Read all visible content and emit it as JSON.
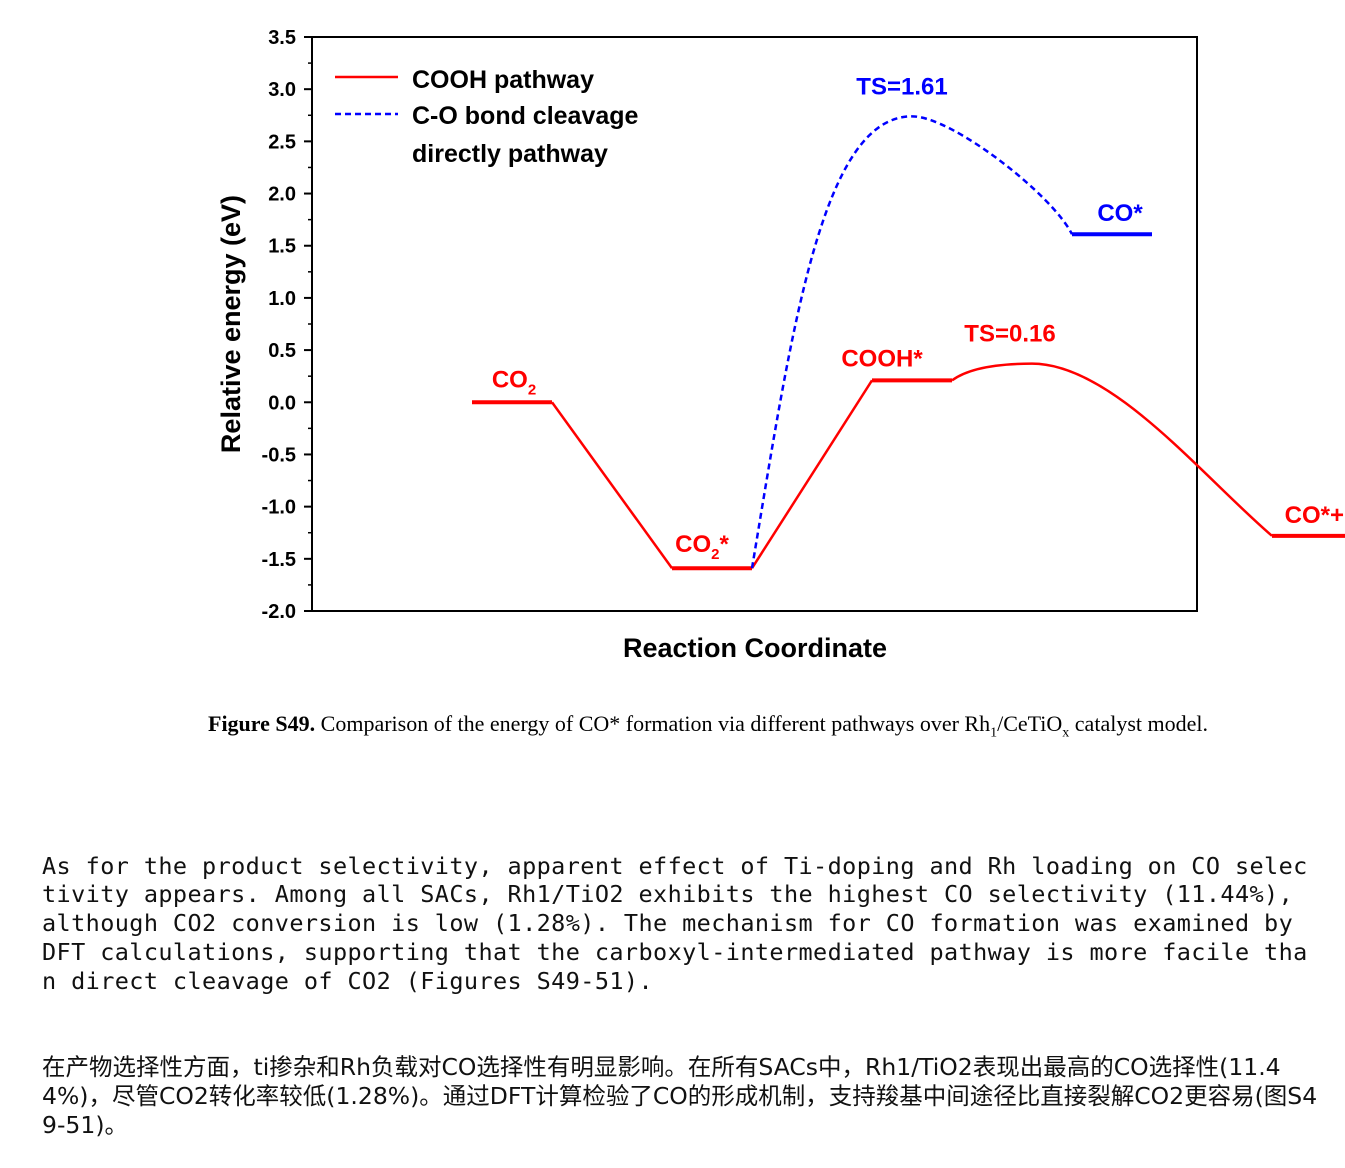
{
  "chart_data": {
    "type": "line",
    "xlabel": "Reaction Coordinate",
    "ylabel": "Relative energy (eV)",
    "ylim": [
      -2.0,
      3.5
    ],
    "yticks": [
      "3.5",
      "3.0",
      "2.5",
      "2.0",
      "1.5",
      "1.0",
      "0.5",
      "0.0",
      "-0.5",
      "-1.0",
      "-1.5",
      "-2.0"
    ],
    "legend_position": "top-left",
    "legend": [
      {
        "label_line1": "COOH pathway",
        "label_line2": "",
        "color": "#ff0000",
        "style": "solid"
      },
      {
        "label_line1": "C-O bond cleavage",
        "label_line2": "directly pathway",
        "color": "#0000ff",
        "style": "dashed"
      }
    ],
    "series": [
      {
        "name": "COOH pathway",
        "color": "#ff0000",
        "states": [
          {
            "label": "CO2",
            "label_html": "CO<tspan font-size='15' dy='7'>2</tspan>",
            "x": [
              0.8,
              1.2
            ],
            "y": 0.0
          },
          {
            "label": "CO2*",
            "label_html": "CO<tspan font-size='15' dy='7'>2</tspan><tspan dy='-7'>*</tspan>",
            "x": [
              1.8,
              2.2
            ],
            "y": -1.59
          },
          {
            "label": "COOH*",
            "x": [
              2.8,
              3.2
            ],
            "y": 0.21
          },
          {
            "label": "CO*+OH*",
            "x": [
              4.8,
              5.2
            ],
            "y": -1.28
          }
        ],
        "transition_state": {
          "label": "TS=0.16",
          "x": 3.6,
          "y": 0.37
        }
      },
      {
        "name": "C-O bond cleavage directly pathway",
        "color": "#0000ff",
        "states": [
          {
            "label": "CO*",
            "x": [
              3.8,
              4.2
            ],
            "y": 1.61
          }
        ],
        "transition_state": {
          "label": "TS=1.61",
          "x": 3.0,
          "y": 2.74
        }
      }
    ]
  },
  "caption": {
    "figure_label": "Figure S49.",
    "text_before_sub": " Comparison of the energy of CO* formation via different pathways over Rh",
    "sub1": "1",
    "text_mid": "/CeTiO",
    "sub2": "x",
    "text_after": " catalyst model."
  },
  "paragraph_en": "As for the product selectivity, apparent effect of Ti-doping and Rh loading on CO selectivity appears. Among all SACs, Rh1/TiO2 exhibits the highest CO selectivity (11.44%), although CO2 conversion is low (1.28%). The mechanism for CO formation was examined by DFT calculations, supporting that the carboxyl-intermediated pathway is more facile than direct cleavage of CO2 (Figures S49-51).",
  "paragraph_zh": "在产物选择性方面，ti掺杂和Rh负载对CO选择性有明显影响。在所有SACs中，Rh1/TiO2表现出最高的CO选择性(11.44%)，尽管CO2转化率较低(1.28%)。通过DFT计算检验了CO的形成机制，支持羧基中间途径比直接裂解CO2更容易(图S49-51)。"
}
